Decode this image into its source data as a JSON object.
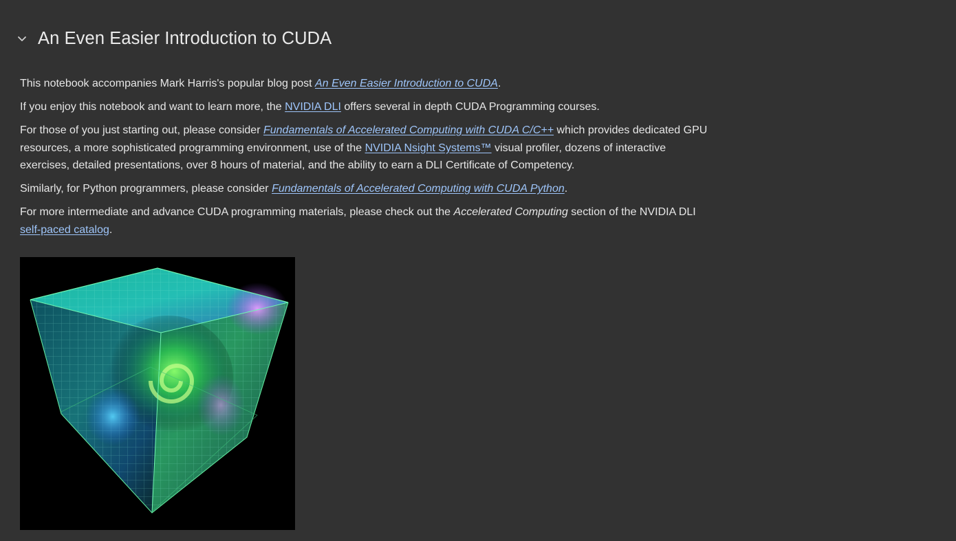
{
  "section": {
    "title": "An Even Easier Introduction to CUDA",
    "toggle_icon": "chevron-down-icon"
  },
  "paragraphs": {
    "p1": {
      "text1": "This notebook accompanies Mark Harris's popular blog post ",
      "link": "An Even Easier Introduction to CUDA",
      "text2": "."
    },
    "p2": {
      "text1": "If you enjoy this notebook and want to learn more, the ",
      "link": "NVIDIA DLI",
      "text2": " offers several in depth CUDA Programming courses."
    },
    "p3": {
      "text1": "For those of you just starting out, please consider ",
      "link1": "Fundamentals of Accelerated Computing with CUDA C/C++",
      "text2": " which provides dedicated GPU resources, a more sophisticated programming environment, use of the ",
      "link2": "NVIDIA Nsight Systems™",
      "text3": " visual profiler, dozens of interactive exercises, detailed presentations, over 8 hours of material, and the ability to earn a DLI Certificate of Competency."
    },
    "p4": {
      "text1": "Similarly, for Python programmers, please consider ",
      "link": "Fundamentals of Accelerated Computing with CUDA Python",
      "text2": "."
    },
    "p5": {
      "text1": "For more intermediate and advance CUDA programming materials, please check out the ",
      "em": "Accelerated Computing",
      "text2": " section of the NVIDIA DLI ",
      "link": "self-paced catalog",
      "text3": "."
    }
  },
  "colors": {
    "background": "#323232",
    "text": "#e6e6e6",
    "link": "#9ec5fa"
  }
}
